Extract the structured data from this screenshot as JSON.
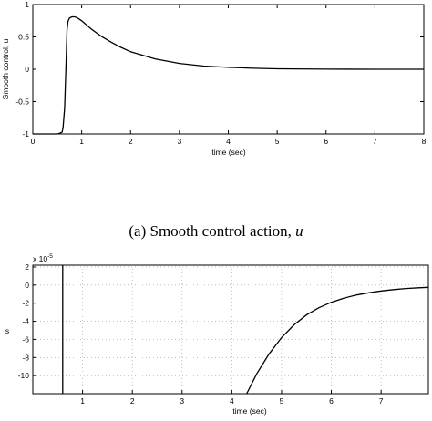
{
  "caption": {
    "text": "(a) Smooth control action, ",
    "symbol": "u"
  },
  "chart_data": [
    {
      "type": "line",
      "title": "",
      "xlabel": "time (sec)",
      "ylabel": "Smooth control, u",
      "xlim": [
        0,
        8
      ],
      "ylim": [
        -1,
        1
      ],
      "xticks": [
        "0",
        "1",
        "2",
        "3",
        "4",
        "5",
        "6",
        "7",
        "8"
      ],
      "yticks": [
        "1",
        "0.5",
        "0",
        "-0.5",
        "-1"
      ],
      "grid": false,
      "series": [
        {
          "x": [
            0,
            0.5,
            0.55,
            0.6,
            0.62,
            0.65,
            0.68,
            0.7,
            0.72,
            0.75,
            0.8,
            0.85,
            0.9,
            1.0,
            1.2,
            1.4,
            1.6,
            1.8,
            2.0,
            2.5,
            3.0,
            3.5,
            4.0,
            4.5,
            5.0,
            6.0,
            7.0,
            8.0
          ],
          "y": [
            -1,
            -1,
            -0.99,
            -0.97,
            -0.9,
            -0.6,
            0.1,
            0.6,
            0.74,
            0.79,
            0.81,
            0.81,
            0.8,
            0.75,
            0.62,
            0.51,
            0.42,
            0.34,
            0.27,
            0.16,
            0.09,
            0.05,
            0.03,
            0.015,
            0.007,
            0.002,
            0.0,
            0.0
          ]
        }
      ]
    },
    {
      "type": "line",
      "title": "",
      "xlabel": "time (sec)",
      "ylabel": "s",
      "exponent_label": "x 10",
      "exponent": "-5",
      "xlim": [
        0,
        7.95
      ],
      "ylim": [
        -12,
        2.2
      ],
      "xticks": [
        "1",
        "2",
        "3",
        "4",
        "5",
        "6",
        "7"
      ],
      "yticks": [
        "2",
        "0",
        "-2",
        "-4",
        "-6",
        "-8",
        "-10"
      ],
      "grid": true,
      "series": [
        {
          "x": [
            0.6,
            0.6,
            4.3,
            4.5,
            4.75,
            5.0,
            5.25,
            5.5,
            5.75,
            6.0,
            6.25,
            6.5,
            6.75,
            7.0,
            7.25,
            7.5,
            7.75,
            7.95
          ],
          "y": [
            -12,
            2.2,
            -12,
            -9.8,
            -7.6,
            -5.8,
            -4.4,
            -3.3,
            -2.5,
            -1.9,
            -1.45,
            -1.1,
            -0.85,
            -0.65,
            -0.5,
            -0.38,
            -0.3,
            -0.25
          ]
        }
      ]
    }
  ]
}
